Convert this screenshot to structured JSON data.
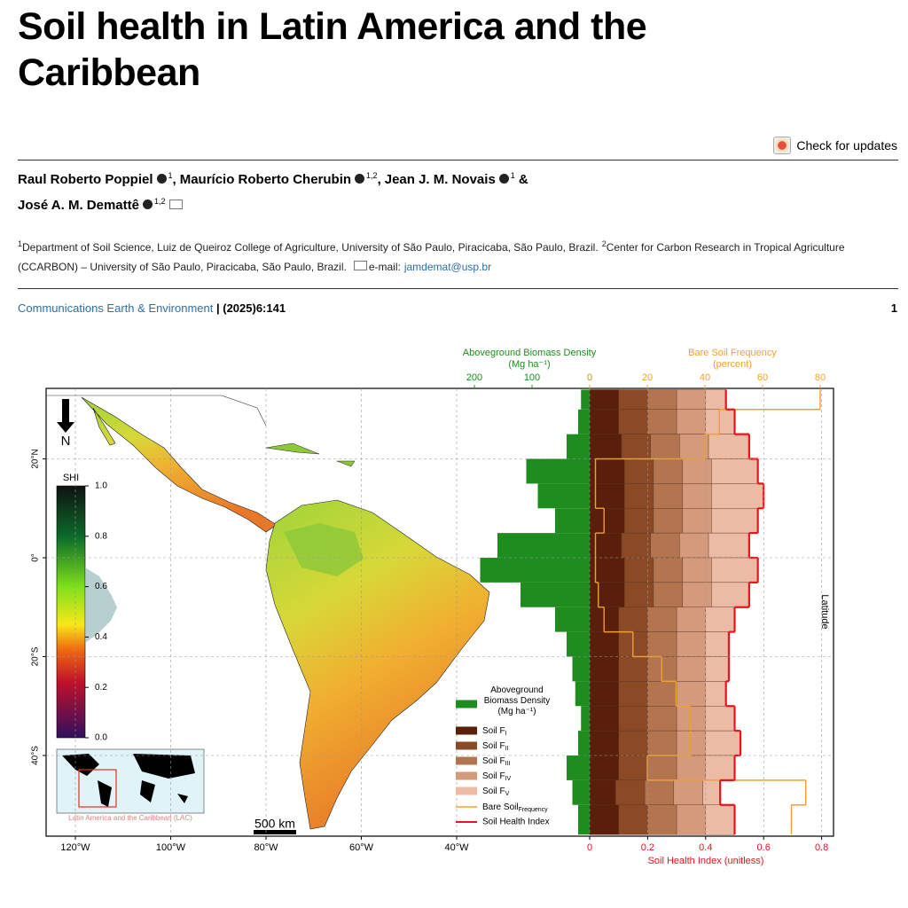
{
  "header": {
    "title": "Soil health in Latin America and the Caribbean",
    "check_updates": "Check for updates"
  },
  "authors": [
    {
      "name": "Raul Roberto Poppiel",
      "affiliations": "1",
      "separator": ","
    },
    {
      "name": "Maurício Roberto Cherubin",
      "affiliations": "1,2",
      "separator": ","
    },
    {
      "name": "Jean J. M. Novais",
      "affiliations": "1",
      "separator": "&"
    },
    {
      "name": "José A. M. Demattê",
      "affiliations": "1,2"
    }
  ],
  "affiliations": [
    {
      "marker": "1",
      "text": "Department of Soil Science, Luiz de Queiroz College of Agriculture, University of São Paulo, Piracicaba, São Paulo, Brazil."
    },
    {
      "marker": "2",
      "text": "Center for Carbon Research in Tropical Agriculture (CCARBON) – University of São Paulo, Piracicaba, São Paulo, Brazil."
    }
  ],
  "email": {
    "label": "e-mail:",
    "address": "jamdemat@usp.br"
  },
  "journal": {
    "name": "Communications Earth & Environment",
    "citation": "| (2025)6:141",
    "page": "1"
  },
  "figure": {
    "latitude_label": "Latitude",
    "north": "N",
    "scale_bar": "500 km",
    "inset_caption": "Latin America and the Caribbean (LAC)",
    "latitude_ticks": [
      {
        "value": 20,
        "label": "20°N"
      },
      {
        "value": 0,
        "label": "0°"
      },
      {
        "value": -20,
        "label": "20°S"
      },
      {
        "value": -40,
        "label": "40°S"
      }
    ],
    "longitude_ticks": [
      {
        "value": -120,
        "label": "120°W"
      },
      {
        "value": -100,
        "label": "100°W"
      },
      {
        "value": -80,
        "label": "80°W"
      },
      {
        "value": -60,
        "label": "60°W"
      },
      {
        "value": -40,
        "label": "40°W"
      }
    ],
    "colorbar": {
      "label": "SHI",
      "ticks": [
        {
          "value": 0,
          "label": "0.0"
        },
        {
          "value": 0.2,
          "label": "0.2"
        },
        {
          "value": 0.4,
          "label": "0.4"
        },
        {
          "value": 0.6,
          "label": "0.6"
        },
        {
          "value": 0.8,
          "label": "0.8"
        },
        {
          "value": 1,
          "label": "1.0"
        }
      ]
    },
    "latitude_edges": [
      34,
      30,
      25,
      20,
      15,
      10,
      5,
      0,
      -5,
      -10,
      -15,
      -20,
      -25,
      -30,
      -35,
      -40,
      -45,
      -50,
      -56
    ],
    "biomass": {
      "title": "Aboveground Biomass Density",
      "unit": "(Mg ha⁻¹)",
      "legend": "Aboveground Biomass Density (Mg ha⁻¹)",
      "color": "#1e8c1e",
      "ticks": [
        200,
        100,
        0
      ],
      "values": [
        15,
        20,
        40,
        110,
        90,
        60,
        160,
        190,
        120,
        60,
        40,
        30,
        25,
        15,
        20,
        40,
        30,
        20
      ]
    },
    "soil_fractions": [
      {
        "name": "Soil F",
        "sub": "I",
        "color": "#5a1f0a",
        "values": [
          0.1,
          0.1,
          0.11,
          0.12,
          0.12,
          0.12,
          0.11,
          0.12,
          0.12,
          0.1,
          0.1,
          0.1,
          0.1,
          0.1,
          0.1,
          0.1,
          0.09,
          0.1
        ]
      },
      {
        "name": "Soil F",
        "sub": "II",
        "color": "#8b4a25",
        "values": [
          0.1,
          0.1,
          0.1,
          0.1,
          0.1,
          0.1,
          0.1,
          0.1,
          0.1,
          0.1,
          0.1,
          0.1,
          0.1,
          0.1,
          0.1,
          0.1,
          0.1,
          0.1
        ]
      },
      {
        "name": "Soil F",
        "sub": "III",
        "color": "#b37550",
        "values": [
          0.1,
          0.1,
          0.1,
          0.1,
          0.1,
          0.1,
          0.1,
          0.1,
          0.1,
          0.1,
          0.1,
          0.1,
          0.1,
          0.1,
          0.1,
          0.1,
          0.1,
          0.1
        ]
      },
      {
        "name": "Soil F",
        "sub": "IV",
        "color": "#d59a7c",
        "values": [
          0.1,
          0.1,
          0.1,
          0.1,
          0.1,
          0.1,
          0.1,
          0.1,
          0.1,
          0.1,
          0.1,
          0.1,
          0.1,
          0.1,
          0.1,
          0.1,
          0.1,
          0.1
        ]
      },
      {
        "name": "Soil F",
        "sub": "V",
        "color": "#ebbba3",
        "values": [
          0.07,
          0.1,
          0.14,
          0.16,
          0.18,
          0.16,
          0.14,
          0.16,
          0.13,
          0.1,
          0.08,
          0.08,
          0.07,
          0.1,
          0.12,
          0.1,
          0.06,
          0.1
        ]
      }
    ],
    "bare_soil": {
      "title": "Bare Soil Frequency",
      "unit": "(percent)",
      "legend": "Bare Soil",
      "legend_sub": "Frequency",
      "color": "#f0a030",
      "ticks": [
        0,
        20,
        40,
        60,
        80
      ],
      "values": [
        80,
        45,
        40,
        2,
        2,
        5,
        2,
        2,
        3,
        5,
        15,
        25,
        30,
        35,
        35,
        20,
        75,
        70
      ]
    },
    "shi": {
      "title": "Soil Health Index (unitless)",
      "legend": "Soil Health Index",
      "color": "#e8141e",
      "ticks": [
        0,
        0.2,
        0.4,
        0.6,
        0.8
      ],
      "values": [
        0.47,
        0.5,
        0.55,
        0.58,
        0.6,
        0.58,
        0.55,
        0.58,
        0.55,
        0.5,
        0.48,
        0.48,
        0.47,
        0.5,
        0.52,
        0.5,
        0.45,
        0.5
      ]
    }
  }
}
